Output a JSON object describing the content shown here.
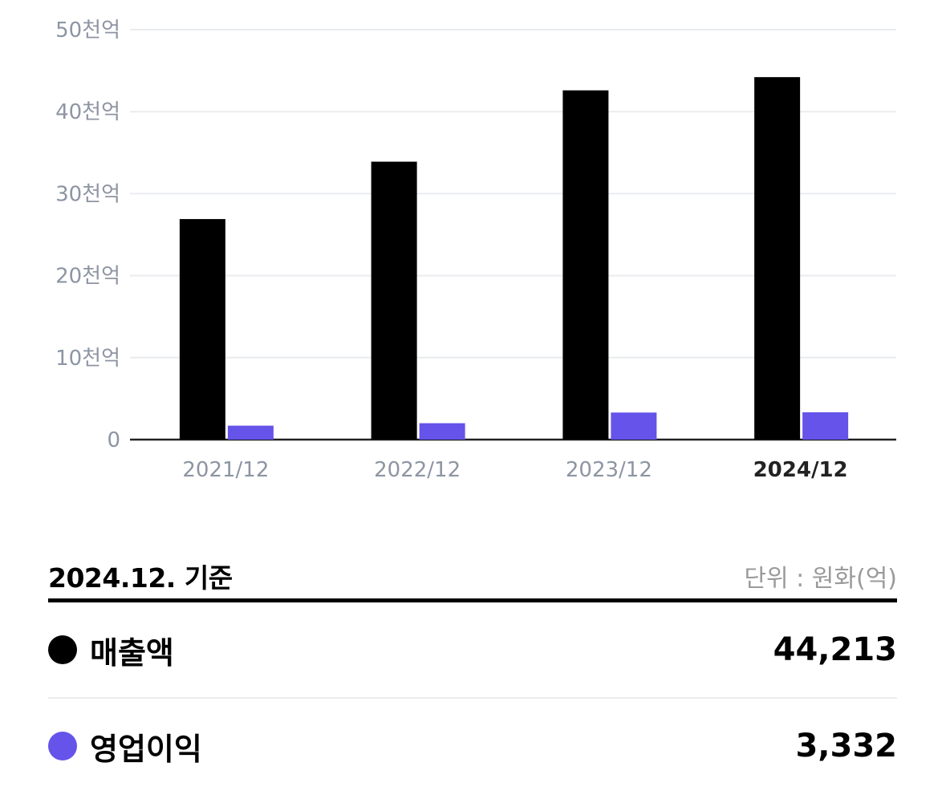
{
  "chart_data": {
    "type": "bar",
    "categories": [
      "2021/12",
      "2022/12",
      "2023/12",
      "2024/12"
    ],
    "active_category": "2024/12",
    "series": [
      {
        "name": "매출액",
        "color": "#000000",
        "values": [
          26900,
          33900,
          42600,
          44213
        ]
      },
      {
        "name": "영업이익",
        "color": "#6553ea",
        "values": [
          1700,
          2000,
          3300,
          3332
        ]
      }
    ],
    "ylim": [
      0,
      50000
    ],
    "yticks": [
      {
        "value": 0,
        "label": "0"
      },
      {
        "value": 10000,
        "label": "10천억"
      },
      {
        "value": 20000,
        "label": "20천억"
      },
      {
        "value": 30000,
        "label": "30천억"
      },
      {
        "value": 40000,
        "label": "40천억"
      },
      {
        "value": 50000,
        "label": "50천억"
      }
    ],
    "grid": true
  },
  "summary": {
    "basis": "2024.12. 기준",
    "unit": "단위 : 원화(억)",
    "rows": [
      {
        "label": "매출액",
        "value": "44,213",
        "color": "#000000"
      },
      {
        "label": "영업이익",
        "value": "3,332",
        "color": "#6553ea"
      }
    ]
  }
}
